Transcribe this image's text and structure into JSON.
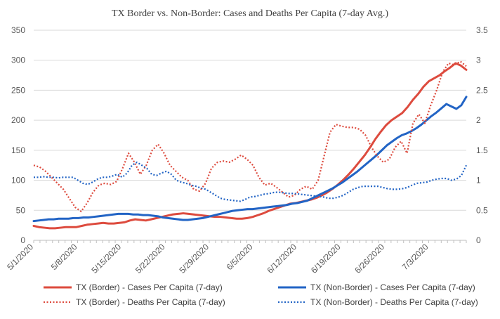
{
  "chart_data": {
    "type": "line",
    "title": "TX Border vs. Non-Border: Cases and Deaths Per Capita (7-day Avg.)",
    "xlabel": "",
    "ylabel": "",
    "y_left_lim": [
      0,
      350
    ],
    "y_right_lim": [
      0,
      3.5
    ],
    "y_left_ticks": [
      "0",
      "50",
      "100",
      "150",
      "200",
      "250",
      "300",
      "350"
    ],
    "y_right_ticks": [
      "0",
      "0.5",
      "1",
      "1.5",
      "2",
      "2.5",
      "3",
      "3.5"
    ],
    "x_tick_labels": [
      "5/1/2020",
      "5/8/2020",
      "5/15/2020",
      "5/22/2020",
      "5/29/2020",
      "6/5/2020",
      "6/12/2020",
      "6/19/2020",
      "6/26/2020",
      "7/3/2020"
    ],
    "x_tick_day_index": [
      0,
      7,
      14,
      21,
      28,
      35,
      42,
      49,
      56,
      63
    ],
    "x_day_count": 69,
    "gridlines": "horizontal",
    "legend_position": "bottom",
    "series": [
      {
        "name": "TX (Border) - Cases Per Capita (7-day)",
        "axis": "left",
        "style": "solid",
        "color": "#dd4b3e",
        "values": [
          24,
          22,
          21,
          20,
          20,
          21,
          22,
          22,
          22,
          24,
          26,
          27,
          28,
          29,
          28,
          28,
          29,
          30,
          33,
          35,
          34,
          33,
          35,
          37,
          39,
          41,
          43,
          44,
          45,
          44,
          43,
          42,
          41,
          40,
          39,
          39,
          38,
          37,
          36,
          36,
          37,
          39,
          42,
          45,
          49,
          52,
          55,
          58,
          61,
          62,
          64,
          66,
          68,
          71,
          75,
          80,
          86,
          93,
          101,
          110,
          120,
          131,
          142,
          155,
          169,
          181,
          192,
          200,
          206,
          212,
          222,
          234,
          244,
          256,
          265,
          270,
          275,
          282,
          288,
          295,
          291,
          284
        ]
      },
      {
        "name": "TX (Non-Border) - Cases Per Capita (7-day)",
        "axis": "left",
        "style": "solid",
        "color": "#2264c5",
        "values": [
          32,
          33,
          34,
          35,
          35,
          36,
          36,
          36,
          37,
          37,
          38,
          38,
          39,
          40,
          41,
          42,
          43,
          44,
          44,
          44,
          43,
          43,
          42,
          42,
          41,
          40,
          38,
          37,
          36,
          35,
          34,
          34,
          35,
          36,
          37,
          39,
          41,
          43,
          45,
          47,
          49,
          50,
          51,
          52,
          52,
          53,
          54,
          55,
          56,
          57,
          58,
          59,
          61,
          62,
          64,
          66,
          70,
          74,
          78,
          82,
          86,
          91,
          96,
          102,
          108,
          114,
          121,
          128,
          135,
          142,
          150,
          158,
          164,
          170,
          175,
          178,
          182,
          187,
          193,
          200,
          207,
          213,
          220,
          227,
          223,
          219,
          225,
          239
        ]
      },
      {
        "name": "TX (Border) - Deaths Per Capita (7-day)",
        "axis": "right",
        "style": "dotted",
        "color": "#dd4b3e",
        "values": [
          1.25,
          1.22,
          1.15,
          1.05,
          0.95,
          0.85,
          0.7,
          0.55,
          0.48,
          0.62,
          0.8,
          0.92,
          0.95,
          0.93,
          0.98,
          1.2,
          1.45,
          1.3,
          1.1,
          1.25,
          1.5,
          1.6,
          1.45,
          1.25,
          1.15,
          1.05,
          1.0,
          0.85,
          0.82,
          0.95,
          1.2,
          1.3,
          1.32,
          1.3,
          1.35,
          1.42,
          1.35,
          1.25,
          1.05,
          0.92,
          0.95,
          0.88,
          0.8,
          0.72,
          0.75,
          0.85,
          0.9,
          0.85,
          1.0,
          1.4,
          1.8,
          1.93,
          1.9,
          1.88,
          1.88,
          1.85,
          1.75,
          1.55,
          1.4,
          1.3,
          1.35,
          1.55,
          1.65,
          1.45,
          1.95,
          2.1,
          1.95,
          2.25,
          2.5,
          2.8,
          2.95,
          2.92,
          2.98,
          2.9
        ]
      },
      {
        "name": "TX (Non-Border) - Deaths Per Capita (7-day)",
        "axis": "right",
        "style": "dotted",
        "color": "#2264c5",
        "values": [
          1.05,
          1.05,
          1.06,
          1.05,
          1.05,
          1.04,
          1.05,
          1.05,
          1.05,
          1.0,
          0.95,
          0.93,
          0.97,
          1.02,
          1.05,
          1.05,
          1.07,
          1.1,
          1.05,
          1.12,
          1.25,
          1.3,
          1.25,
          1.2,
          1.1,
          1.08,
          1.12,
          1.15,
          1.1,
          1.0,
          0.97,
          0.95,
          0.92,
          0.9,
          0.87,
          0.85,
          0.8,
          0.75,
          0.7,
          0.68,
          0.67,
          0.66,
          0.65,
          0.68,
          0.72,
          0.73,
          0.75,
          0.77,
          0.78,
          0.8,
          0.8,
          0.79,
          0.78,
          0.78,
          0.77,
          0.76,
          0.75,
          0.74,
          0.73,
          0.72,
          0.7,
          0.7,
          0.72,
          0.75,
          0.8,
          0.85,
          0.88,
          0.9,
          0.9,
          0.9,
          0.9,
          0.88,
          0.86,
          0.85,
          0.85,
          0.86,
          0.88,
          0.92,
          0.95,
          0.96,
          0.97,
          1.0,
          1.02,
          1.03,
          1.03,
          1.0,
          1.02,
          1.08,
          1.25
        ]
      }
    ]
  }
}
